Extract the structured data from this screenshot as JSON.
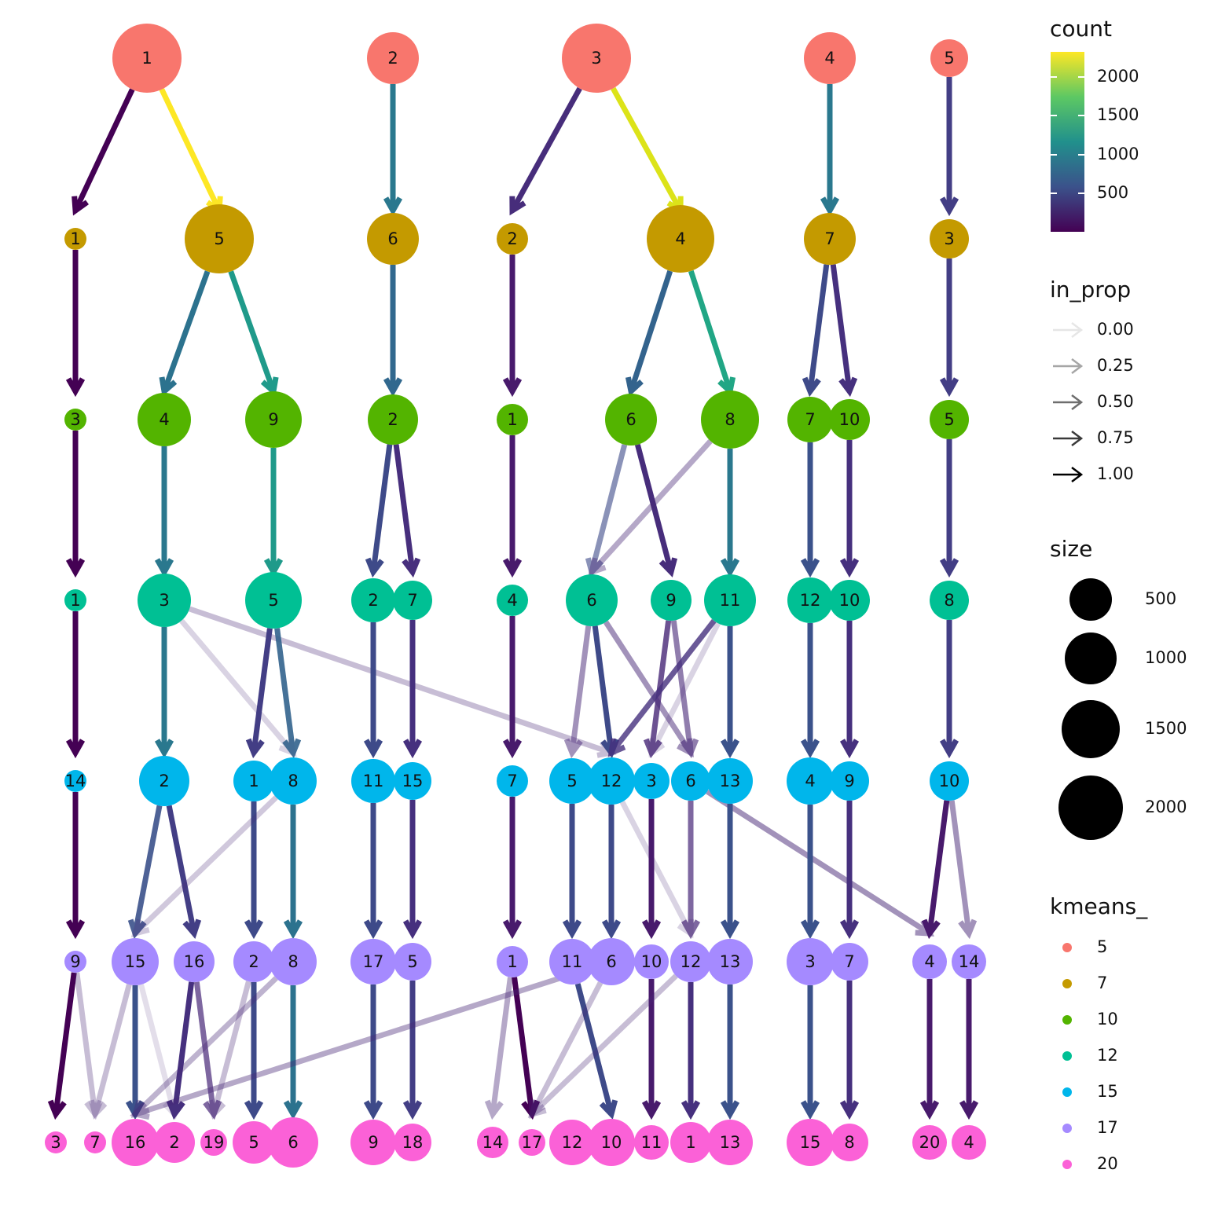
{
  "rows": [
    [
      "1",
      "2",
      "3",
      "4",
      "5"
    ],
    [
      "1",
      "5",
      "6",
      "2",
      "4",
      "7",
      "3"
    ],
    [
      "3",
      "4",
      "9",
      "2",
      "1",
      "6",
      "8",
      "7",
      "10",
      "5"
    ],
    [
      "1",
      "3",
      "5",
      "2",
      "7",
      "4",
      "6",
      "9",
      "11",
      "12",
      "10",
      "8"
    ],
    [
      "14",
      "2",
      "1",
      "8",
      "11",
      "15",
      "7",
      "5",
      "12",
      "3",
      "6",
      "13",
      "4",
      "9",
      "10"
    ],
    [
      "9",
      "15",
      "16",
      "2",
      "8",
      "17",
      "5",
      "1",
      "11",
      "6",
      "10",
      "12",
      "13",
      "3",
      "7",
      "4",
      "14"
    ],
    [
      "3",
      "7",
      "16",
      "2",
      "19",
      "5",
      "6",
      "9",
      "18",
      "14",
      "17",
      "12",
      "10",
      "11",
      "1",
      "13",
      "15",
      "8",
      "20",
      "4"
    ]
  ],
  "legend": {
    "count": {
      "title": "count",
      "labels": [
        "2000",
        "1500",
        "1000",
        "500"
      ]
    },
    "in_prop": {
      "title": "in_prop",
      "labels": [
        "0.00",
        "0.25",
        "0.50",
        "0.75",
        "1.00"
      ]
    },
    "size": {
      "title": "size",
      "labels": [
        "500",
        "1000",
        "1500",
        "2000"
      ]
    },
    "kmeans": {
      "title": "kmeans_",
      "labels": [
        "5",
        "7",
        "10",
        "12",
        "15",
        "17",
        "20"
      ]
    }
  }
}
